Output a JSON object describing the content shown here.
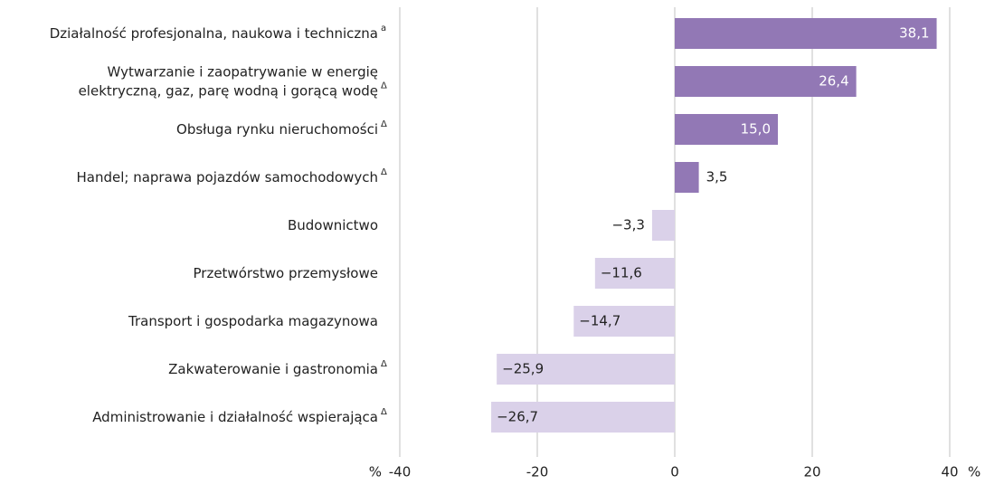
{
  "chart_data": {
    "type": "barh",
    "categories": [
      "Działalność profesjonalna, naukowa i techniczna",
      "Wytwarzanie i zaopatrywanie w energię\nelektryczną, gaz, parę wodną i gorącą wodę",
      "Obsługa rynku nieruchomości",
      "Handel; naprawa pojazdów samochodowych",
      "Budownictwo",
      "Przetwórstwo przemysłowe",
      "Transport i gospodarka magazynowa",
      "Zakwaterowanie i gastronomia",
      "Administrowanie i działalność wspierająca"
    ],
    "category_notes": [
      "a",
      "Δ",
      "Δ",
      "Δ",
      null,
      null,
      null,
      "Δ",
      "Δ"
    ],
    "values": [
      38.1,
      26.4,
      15.0,
      3.5,
      -3.3,
      -11.6,
      -14.7,
      -25.9,
      -26.7
    ],
    "value_labels": [
      "38,1",
      "26,4",
      "15,0",
      "3,5",
      "−3,3",
      "−11,6",
      "−14,7",
      "−25,9",
      "−26,7"
    ],
    "colors": [
      "#9278b5",
      "#9278b5",
      "#9278b5",
      "#9278b5",
      "#dad1e9",
      "#dad1e9",
      "#dad1e9",
      "#dad1e9",
      "#dad1e9"
    ],
    "xlim": [
      -40,
      40
    ],
    "xticks": [
      -40,
      -20,
      0,
      20,
      40
    ],
    "x_unit": "%",
    "grid": true
  }
}
